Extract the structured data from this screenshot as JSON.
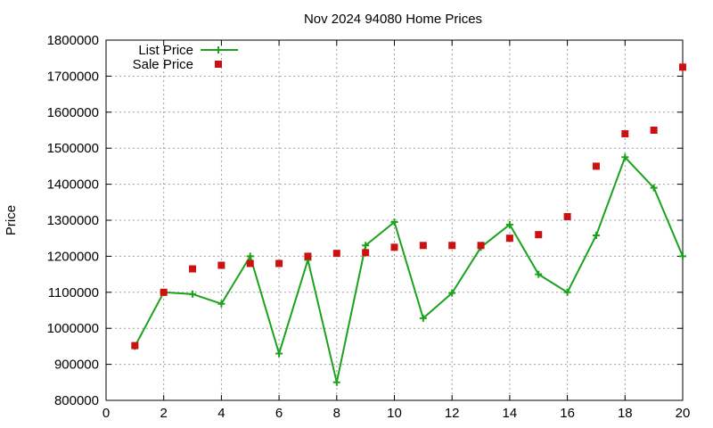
{
  "chart_data": {
    "type": "line",
    "title": "Nov 2024 94080 Home Prices",
    "xlabel": "",
    "ylabel": "Price",
    "xlim": [
      0,
      20
    ],
    "ylim": [
      800000,
      1800000
    ],
    "xticks": [
      0,
      2,
      4,
      6,
      8,
      10,
      12,
      14,
      16,
      18,
      20
    ],
    "yticks": [
      800000,
      900000,
      1000000,
      1100000,
      1200000,
      1300000,
      1400000,
      1500000,
      1600000,
      1700000,
      1800000
    ],
    "grid": true,
    "legend_position": "top-left",
    "series": [
      {
        "name": "List Price",
        "style": "line+cross",
        "color": "#1aa31a",
        "x": [
          1,
          2,
          3,
          4,
          5,
          6,
          7,
          8,
          9,
          10,
          11,
          12,
          13,
          14,
          15,
          16,
          17,
          18,
          19,
          20
        ],
        "y": [
          950000,
          1100000,
          1095000,
          1068000,
          1200000,
          930000,
          1190000,
          850000,
          1230000,
          1295000,
          1028000,
          1098000,
          1225000,
          1288000,
          1150000,
          1100000,
          1258000,
          1475000,
          1390000,
          1200000
        ]
      },
      {
        "name": "Sale Price",
        "style": "square",
        "color": "#cc1111",
        "x": [
          1,
          2,
          3,
          4,
          5,
          6,
          7,
          8,
          9,
          10,
          11,
          12,
          13,
          14,
          15,
          16,
          17,
          18,
          19,
          20
        ],
        "y": [
          952000,
          1100000,
          1165000,
          1175000,
          1180000,
          1180000,
          1200000,
          1208000,
          1210000,
          1225000,
          1230000,
          1230000,
          1230000,
          1250000,
          1260000,
          1310000,
          1450000,
          1540000,
          1550000,
          1725000
        ]
      }
    ]
  }
}
